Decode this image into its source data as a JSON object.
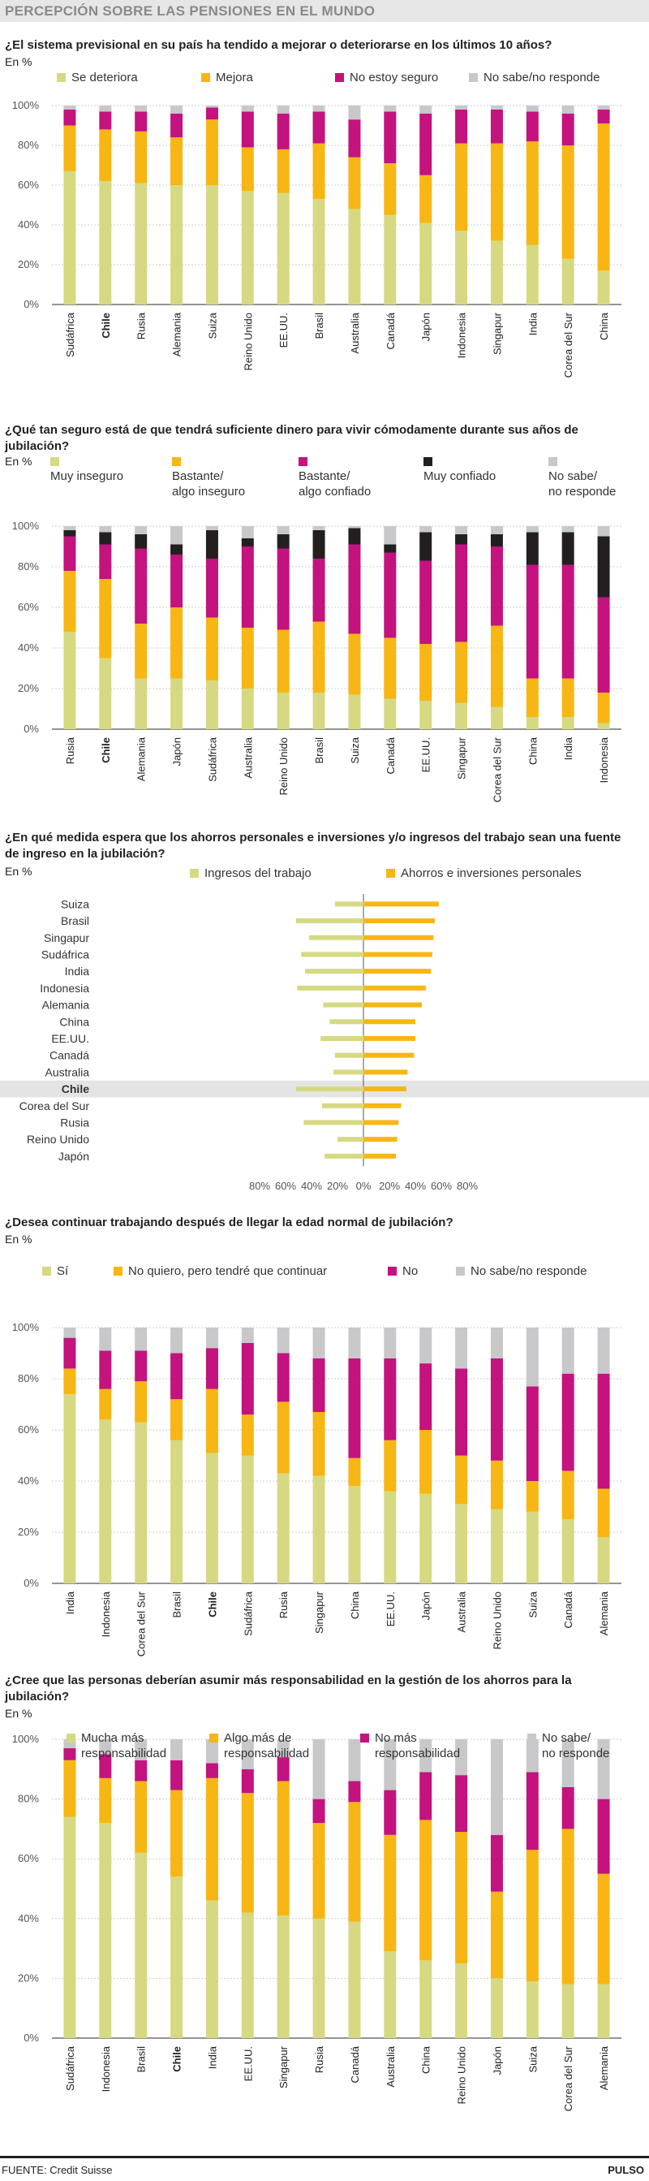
{
  "header": {
    "title": "PERCEPCIÓN SOBRE LAS PENSIONES EN EL MUNDO"
  },
  "colors": {
    "c1": "#d6d982",
    "c2": "#f7b613",
    "c3": "#c4127e",
    "c4": "#231f20",
    "c5": "#c8c8ca"
  },
  "footer": {
    "source": "FUENTE: Credit Suisse",
    "brand": "PULSO"
  },
  "charts": [
    {
      "question": "¿El sistema previsional en su país ha tendido a mejorar o deteriorarse en los últimos 10 años?",
      "unit": "En %",
      "legend": [
        "Se deteriora",
        "Mejora",
        "No estoy seguro",
        "No sabe/no responde"
      ]
    },
    {
      "question": "¿Qué tan seguro está de que tendrá suficiente dinero para vivir cómodamente durante sus años de jubilación?",
      "unit": "En %",
      "legend": [
        "Muy inseguro",
        "Bastante/\nalgo inseguro",
        "Bastante/\nalgo confiado",
        "Muy confiado",
        "No sabe/\nno responde"
      ]
    },
    {
      "question": "¿En qué medida espera que los ahorros personales e inversiones y/o ingresos del trabajo sean una fuente de ingreso en la jubilación?",
      "unit": "En %",
      "legend": [
        "Ingresos del trabajo",
        "Ahorros e inversiones personales"
      ]
    },
    {
      "question": "¿Desea continuar trabajando después de llegar la edad normal de jubilación?",
      "unit": "En %",
      "legend": [
        "Sí",
        "No quiero, pero tendré que continuar",
        "No",
        "No sabe/no responde"
      ]
    },
    {
      "question": "¿Cree que las personas deberían asumir más responsabilidad en la gestión de los ahorros para la jubilación?",
      "unit": "En %",
      "legend": [
        "Mucha más\nresponsabilidad",
        "Algo más de\nresponsabilidad",
        "No más\nresponsabilidad",
        "No sabe/\nno responde"
      ]
    }
  ],
  "chart_data": [
    {
      "type": "bar",
      "stacked": true,
      "highlight": "Chile",
      "ylim": [
        0,
        100
      ],
      "yticks": [
        "0%",
        "20%",
        "40%",
        "60%",
        "80%",
        "100%"
      ],
      "categories": [
        "Sudáfrica",
        "Chile",
        "Rusia",
        "Alemania",
        "Suiza",
        "Reino Unido",
        "EE.UU.",
        "Brasil",
        "Australia",
        "Canadá",
        "Japón",
        "Indonesia",
        "Singapur",
        "India",
        "Corea del Sur",
        "China"
      ],
      "series": [
        {
          "name": "Se deteriora",
          "values": [
            67,
            62,
            61,
            60,
            60,
            57,
            56,
            53,
            48,
            45,
            41,
            37,
            32,
            30,
            23,
            17
          ]
        },
        {
          "name": "Mejora",
          "values": [
            23,
            26,
            26,
            24,
            33,
            22,
            22,
            28,
            26,
            26,
            24,
            44,
            49,
            52,
            57,
            74
          ]
        },
        {
          "name": "No estoy seguro",
          "values": [
            8,
            9,
            10,
            12,
            6,
            18,
            18,
            16,
            19,
            26,
            31,
            17,
            17,
            15,
            16,
            7
          ]
        },
        {
          "name": "No sabe/no responde",
          "values": [
            2,
            3,
            3,
            4,
            1,
            3,
            4,
            3,
            7,
            3,
            4,
            2,
            2,
            3,
            4,
            2
          ]
        }
      ]
    },
    {
      "type": "bar",
      "stacked": true,
      "highlight": "Chile",
      "ylim": [
        0,
        100
      ],
      "yticks": [
        "0%",
        "20%",
        "40%",
        "60%",
        "80%",
        "100%"
      ],
      "categories": [
        "Rusia",
        "Chile",
        "Alemania",
        "Japón",
        "Sudáfrica",
        "Australia",
        "Reino Unido",
        "Brasil",
        "Suiza",
        "Canadá",
        "EE.UU.",
        "Singapur",
        "Corea del Sur",
        "China",
        "India",
        "Indonesia"
      ],
      "series": [
        {
          "name": "Muy inseguro",
          "values": [
            48,
            35,
            25,
            25,
            24,
            20,
            18,
            18,
            17,
            15,
            14,
            13,
            11,
            6,
            6,
            3
          ]
        },
        {
          "name": "Bastante/ algo inseguro",
          "values": [
            30,
            39,
            27,
            35,
            31,
            30,
            31,
            35,
            30,
            30,
            28,
            30,
            40,
            19,
            19,
            15
          ]
        },
        {
          "name": "Bastante/ algo confiado",
          "values": [
            17,
            17,
            37,
            26,
            29,
            40,
            40,
            31,
            44,
            42,
            41,
            48,
            39,
            56,
            56,
            47
          ]
        },
        {
          "name": "Muy confiado",
          "values": [
            3,
            6,
            7,
            5,
            14,
            4,
            7,
            14,
            8,
            4,
            14,
            5,
            6,
            16,
            16,
            30
          ]
        },
        {
          "name": "No sabe/ no responde",
          "values": [
            2,
            3,
            4,
            9,
            2,
            6,
            4,
            2,
            1,
            9,
            3,
            4,
            4,
            3,
            3,
            5
          ]
        }
      ]
    },
    {
      "type": "bar",
      "orientation": "horizontal",
      "diverging": true,
      "highlight": "Chile",
      "xlim": [
        -80,
        80
      ],
      "xticks": [
        "80%",
        "60%",
        "40%",
        "20%",
        "0%",
        "20%",
        "40%",
        "60%",
        "80%"
      ],
      "categories": [
        "Suiza",
        "Brasil",
        "Singapur",
        "Sudáfrica",
        "India",
        "Indonesia",
        "Alemania",
        "China",
        "EE.UU.",
        "Canadá",
        "Australia",
        "Chile",
        "Corea del Sur",
        "Rusia",
        "Reino Unido",
        "Japón"
      ],
      "series": [
        {
          "name": "Ingresos del trabajo",
          "values": [
            22,
            52,
            42,
            48,
            45,
            51,
            31,
            26,
            33,
            22,
            23,
            52,
            32,
            46,
            20,
            30
          ]
        },
        {
          "name": "Ahorros e inversiones personales",
          "values": [
            58,
            55,
            54,
            53,
            52,
            48,
            45,
            40,
            40,
            39,
            34,
            33,
            29,
            27,
            26,
            25
          ]
        }
      ]
    },
    {
      "type": "bar",
      "stacked": true,
      "highlight": "Chile",
      "ylim": [
        0,
        100
      ],
      "yticks": [
        "0%",
        "20%",
        "40%",
        "60%",
        "80%",
        "100%"
      ],
      "categories": [
        "India",
        "Indonesia",
        "Corea del Sur",
        "Brasil",
        "Chile",
        "Sudáfrica",
        "Rusia",
        "Singapur",
        "China",
        "EE.UU.",
        "Japón",
        "Australia",
        "Reino Unido",
        "Suiza",
        "Canadá",
        "Alemania"
      ],
      "series": [
        {
          "name": "Sí",
          "values": [
            74,
            64,
            63,
            56,
            51,
            50,
            43,
            42,
            38,
            36,
            35,
            31,
            29,
            28,
            25,
            18
          ]
        },
        {
          "name": "No quiero, pero tendré que continuar",
          "values": [
            10,
            12,
            16,
            16,
            25,
            16,
            28,
            25,
            11,
            20,
            25,
            19,
            19,
            12,
            19,
            19
          ]
        },
        {
          "name": "No",
          "values": [
            12,
            15,
            12,
            18,
            16,
            28,
            19,
            21,
            39,
            32,
            26,
            34,
            40,
            37,
            38,
            45
          ]
        },
        {
          "name": "No sabe/no responde",
          "values": [
            4,
            9,
            9,
            10,
            8,
            6,
            10,
            12,
            12,
            12,
            14,
            16,
            12,
            23,
            18,
            18
          ]
        }
      ]
    },
    {
      "type": "bar",
      "stacked": true,
      "highlight": "Chile",
      "ylim": [
        0,
        100
      ],
      "yticks": [
        "0%",
        "20%",
        "40%",
        "60%",
        "80%",
        "100%"
      ],
      "categories": [
        "Sudáfrica",
        "Indonesia",
        "Brasil",
        "Chile",
        "India",
        "EE.UU.",
        "Singapur",
        "Rusia",
        "Canadá",
        "Australia",
        "China",
        "Reino Unido",
        "Japón",
        "Suiza",
        "Corea del Sur",
        "Alemania"
      ],
      "series": [
        {
          "name": "Mucha más responsabilidad",
          "values": [
            74,
            72,
            62,
            54,
            46,
            42,
            41,
            40,
            39,
            29,
            26,
            25,
            20,
            19,
            18,
            18
          ]
        },
        {
          "name": "Algo más de responsabilidad",
          "values": [
            19,
            15,
            24,
            29,
            41,
            40,
            45,
            32,
            40,
            39,
            47,
            44,
            29,
            44,
            52,
            37
          ]
        },
        {
          "name": "No más responsabilidad",
          "values": [
            4,
            8,
            7,
            10,
            5,
            8,
            8,
            8,
            7,
            15,
            16,
            19,
            19,
            26,
            14,
            25
          ]
        },
        {
          "name": "No sabe/ no responde",
          "values": [
            3,
            5,
            7,
            7,
            8,
            10,
            6,
            20,
            14,
            17,
            11,
            12,
            32,
            11,
            16,
            20
          ]
        }
      ]
    }
  ]
}
